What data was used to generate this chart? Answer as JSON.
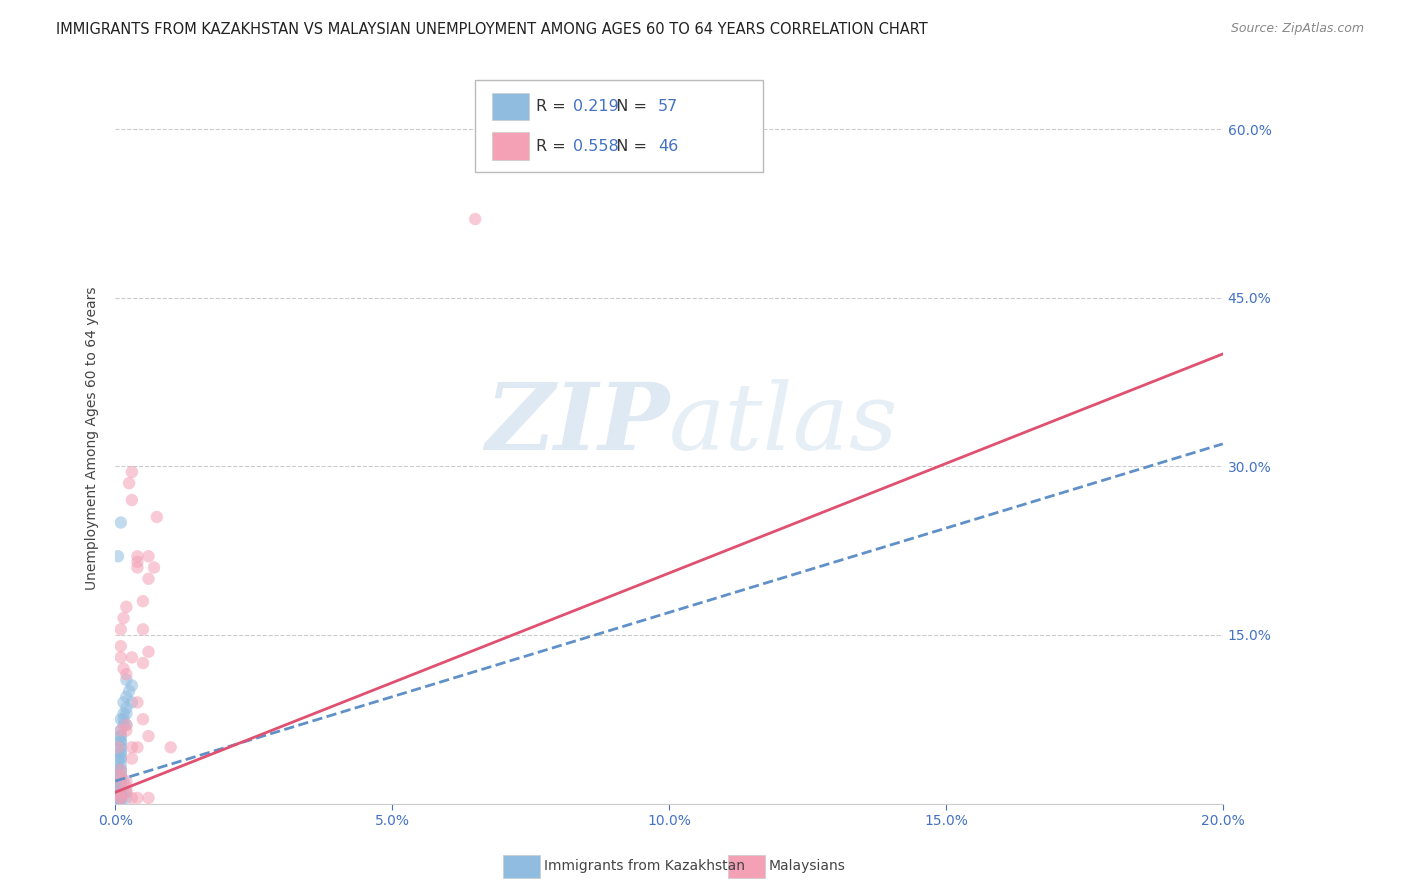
{
  "title": "IMMIGRANTS FROM KAZAKHSTAN VS MALAYSIAN UNEMPLOYMENT AMONG AGES 60 TO 64 YEARS CORRELATION CHART",
  "source": "Source: ZipAtlas.com",
  "ylabel": "Unemployment Among Ages 60 to 64 years",
  "watermark_zip": "ZIP",
  "watermark_atlas": "atlas",
  "blue_scatter_x": [
    0.0005,
    0.001,
    0.001,
    0.0015,
    0.002,
    0.002,
    0.0025,
    0.003,
    0.003,
    0.0005,
    0.001,
    0.001,
    0.0015,
    0.002,
    0.0005,
    0.001,
    0.0015,
    0.002,
    0.001,
    0.001,
    0.0005,
    0.001,
    0.002,
    0.001,
    0.001,
    0.0005,
    0.0005,
    0.001,
    0.001,
    0.0015,
    0.001,
    0.0005,
    0.001,
    0.001,
    0.0005,
    0.001,
    0.001,
    0.001,
    0.0005,
    0.0005,
    0.001,
    0.001,
    0.0005,
    0.001,
    0.0015,
    0.001,
    0.001,
    0.0005,
    0.0005,
    0.001,
    0.0005,
    0.001,
    0.002,
    0.001,
    0.0005,
    0.001,
    0.002
  ],
  "blue_scatter_y": [
    0.22,
    0.25,
    0.05,
    0.07,
    0.11,
    0.085,
    0.1,
    0.105,
    0.09,
    0.04,
    0.075,
    0.065,
    0.09,
    0.08,
    0.03,
    0.06,
    0.075,
    0.095,
    0.055,
    0.045,
    0.025,
    0.05,
    0.07,
    0.045,
    0.035,
    0.02,
    0.03,
    0.06,
    0.055,
    0.08,
    0.04,
    0.015,
    0.025,
    0.03,
    0.01,
    0.04,
    0.02,
    0.025,
    0.015,
    0.01,
    0.03,
    0.02,
    0.005,
    0.01,
    0.02,
    0.01,
    0.015,
    0.005,
    0.005,
    0.01,
    0.005,
    0.005,
    0.01,
    0.005,
    0.002,
    0.003,
    0.005
  ],
  "pink_scatter_x": [
    0.0005,
    0.001,
    0.0015,
    0.002,
    0.002,
    0.0025,
    0.003,
    0.003,
    0.004,
    0.004,
    0.004,
    0.005,
    0.005,
    0.005,
    0.006,
    0.006,
    0.006,
    0.007,
    0.0075,
    0.001,
    0.001,
    0.001,
    0.0015,
    0.002,
    0.002,
    0.003,
    0.003,
    0.004,
    0.005,
    0.006,
    0.001,
    0.001,
    0.0005,
    0.001,
    0.002,
    0.002,
    0.003,
    0.004,
    0.006,
    0.001,
    0.001,
    0.002,
    0.003,
    0.004,
    0.01,
    0.065
  ],
  "pink_scatter_y": [
    0.05,
    0.155,
    0.165,
    0.02,
    0.175,
    0.285,
    0.295,
    0.27,
    0.21,
    0.22,
    0.215,
    0.155,
    0.125,
    0.18,
    0.22,
    0.2,
    0.135,
    0.21,
    0.255,
    0.065,
    0.13,
    0.14,
    0.12,
    0.115,
    0.07,
    0.13,
    0.05,
    0.09,
    0.075,
    0.06,
    0.02,
    0.03,
    0.01,
    0.005,
    0.01,
    0.015,
    0.005,
    0.05,
    0.005,
    0.005,
    0.025,
    0.065,
    0.04,
    0.005,
    0.05,
    0.52
  ],
  "blue_line_x": [
    0.0,
    0.2
  ],
  "blue_line_y": [
    0.02,
    0.32
  ],
  "pink_line_x": [
    0.0,
    0.2
  ],
  "pink_line_y": [
    0.01,
    0.4
  ],
  "xmin": 0.0,
  "xmax": 0.2,
  "ymin": 0.0,
  "ymax": 0.65,
  "yticks": [
    0.0,
    0.15,
    0.3,
    0.45,
    0.6
  ],
  "xticks": [
    0.0,
    0.05,
    0.1,
    0.15,
    0.2
  ],
  "scatter_alpha": 0.55,
  "scatter_size": 80,
  "blue_color": "#90bce0",
  "pink_color": "#f4a0b5",
  "trendline_blue_color": "#6090c8",
  "trendline_pink_color": "#e05070",
  "tick_label_color": "#4472c4",
  "grid_color": "#cccccc",
  "background_color": "#ffffff",
  "title_fontsize": 10.5,
  "axis_label_fontsize": 10,
  "tick_fontsize": 10,
  "legend_R_color": "#333333",
  "legend_N_color": "#4472c4",
  "legend_val_color": "#4472c4"
}
